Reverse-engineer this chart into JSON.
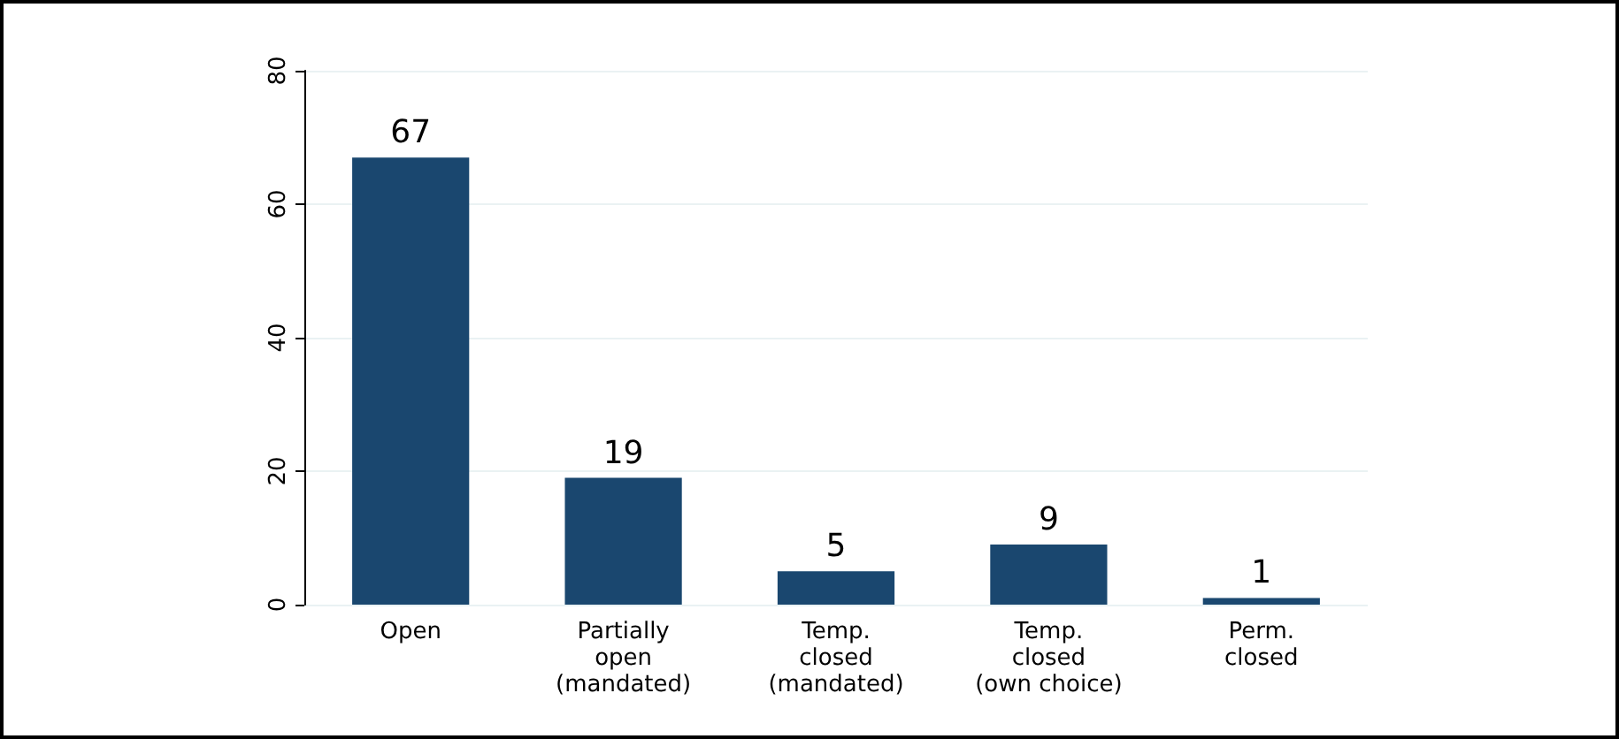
{
  "chart_data": {
    "type": "bar",
    "categories": [
      "Open",
      "Partially\nopen\n(mandated)",
      "Temp.\nclosed\n(mandated)",
      "Temp.\nclosed\n(own choice)",
      "Perm.\nclosed"
    ],
    "values": [
      67,
      19,
      5,
      9,
      1
    ],
    "color": "#1a476f",
    "ylim": [
      0,
      80
    ],
    "yticks": [
      0,
      20,
      40,
      60,
      80
    ],
    "grid": "y",
    "data_labels": true
  }
}
